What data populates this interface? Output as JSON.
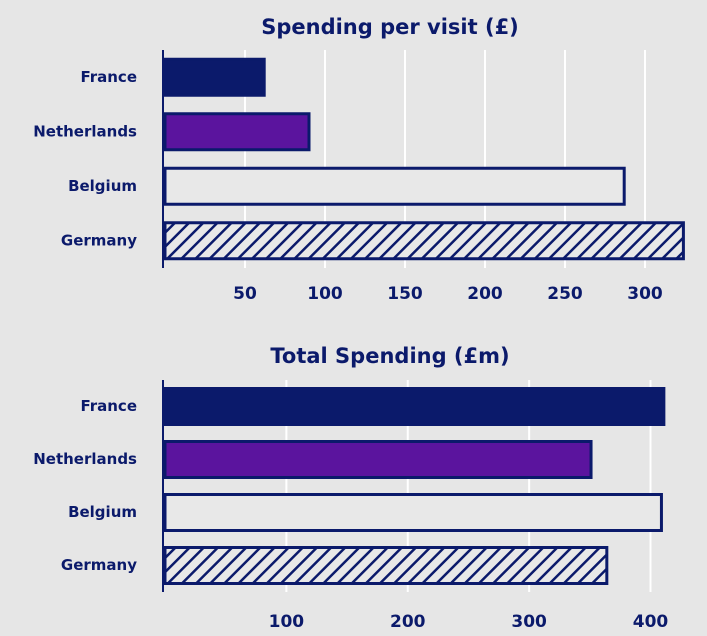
{
  "chart_data": [
    {
      "type": "barh",
      "title": "Spending per visit (£)",
      "categories": [
        "France",
        "Netherlands",
        "Belgium",
        "Germany"
      ],
      "values": [
        62,
        90,
        287,
        324
      ],
      "colors": [
        "#0b1a6b",
        "#5b149e",
        "#e8e8e8",
        "#0b1a6b"
      ],
      "hatch": [
        false,
        false,
        false,
        true
      ],
      "xlim": [
        0,
        330
      ],
      "xticks": [
        50,
        100,
        150,
        200,
        250,
        300
      ],
      "grid": true
    },
    {
      "type": "barh",
      "title": "Total Spending (£m)",
      "categories": [
        "France",
        "Netherlands",
        "Belgium",
        "Germany"
      ],
      "values": [
        411,
        351,
        409,
        364
      ],
      "colors": [
        "#0b1a6b",
        "#5b149e",
        "#e8e8e8",
        "#0b1a6b"
      ],
      "hatch": [
        false,
        false,
        false,
        true
      ],
      "xlim": [
        0,
        435
      ],
      "xticks": [
        100,
        200,
        300,
        400
      ],
      "grid": true
    }
  ]
}
